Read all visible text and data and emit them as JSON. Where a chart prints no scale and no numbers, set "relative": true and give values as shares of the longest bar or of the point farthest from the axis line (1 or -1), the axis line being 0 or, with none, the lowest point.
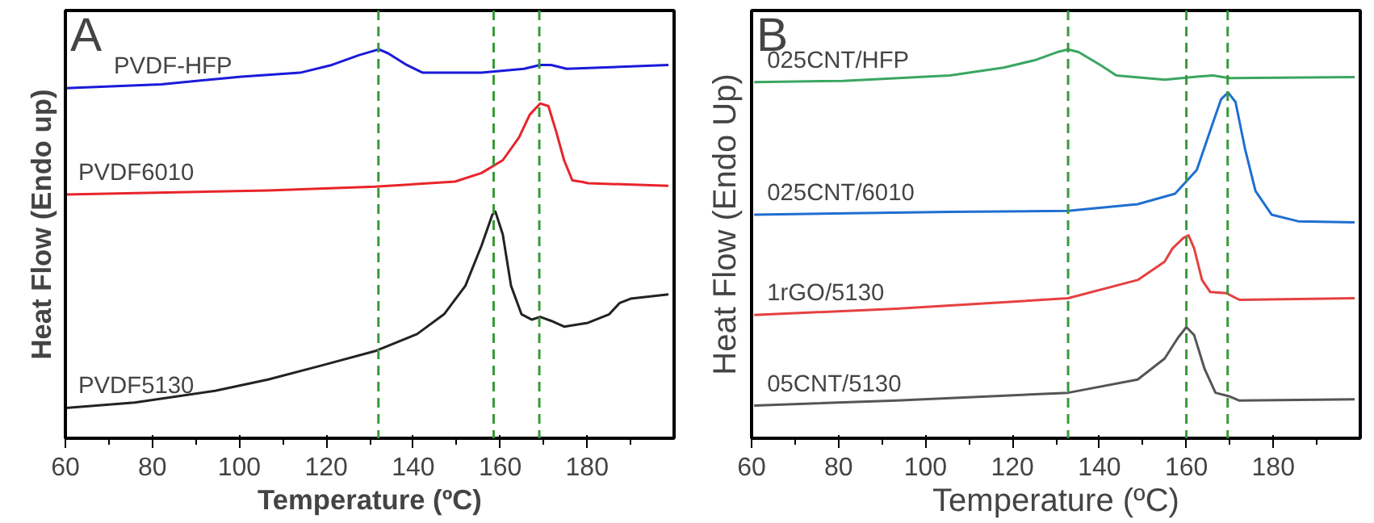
{
  "chart_data": [
    {
      "type": "line",
      "title": "A",
      "xlabel": "Temperature (ºC)",
      "ylabel": "Heat Flow (Endo up)",
      "relative": true,
      "xlim": [
        60,
        200
      ],
      "xticks": [
        60,
        80,
        100,
        120,
        140,
        160,
        180
      ],
      "grid": false,
      "line_style": "solid",
      "marker": "none",
      "series": [
        {
          "name": "PVDF-HFP",
          "color": "#1a1adb",
          "x": [
            60,
            82.1,
            100.5,
            114,
            121.3,
            127.5,
            132.1,
            134.2,
            138.5,
            142.2,
            155.7,
            165.5,
            169.2,
            171.7,
            175.3,
            198.7
          ],
          "values": [
            0.9,
            0.91,
            0.93,
            0.94,
            0.96,
            0.985,
            1.0,
            0.99,
            0.96,
            0.94,
            0.94,
            0.95,
            0.96,
            0.96,
            0.95,
            0.96
          ]
        },
        {
          "name": "PVDF6010",
          "color": "#e8242a",
          "x": [
            60,
            106.6,
            131.2,
            149.6,
            155.7,
            160.6,
            164.3,
            166.8,
            169.2,
            171.1,
            172.9,
            174.7,
            176.6,
            179,
            180.2,
            198.7
          ],
          "values": [
            0.627,
            0.637,
            0.647,
            0.66,
            0.682,
            0.715,
            0.773,
            0.832,
            0.861,
            0.854,
            0.788,
            0.715,
            0.663,
            0.659,
            0.656,
            0.649
          ]
        },
        {
          "name": "PVDF5130",
          "color": "#222222",
          "x": [
            60,
            75.95,
            94.4,
            106.6,
            118.9,
            131.2,
            140.9,
            147.1,
            152,
            155.7,
            158.2,
            158.9,
            160.6,
            162.5,
            164.9,
            167.3,
            169.2,
            171.7,
            174.7,
            180.2,
            185.1,
            187.5,
            190,
            198.7
          ],
          "values": [
            0.078,
            0.092,
            0.122,
            0.151,
            0.187,
            0.224,
            0.268,
            0.319,
            0.392,
            0.495,
            0.575,
            0.583,
            0.524,
            0.392,
            0.319,
            0.305,
            0.312,
            0.302,
            0.287,
            0.297,
            0.319,
            0.348,
            0.359,
            0.37
          ]
        }
      ],
      "ref_lines": [
        {
          "axis": "x",
          "value": 132,
          "color": "#3a9a3a",
          "line_style": "dashed"
        },
        {
          "axis": "x",
          "value": 158.5,
          "color": "#3a9a3a",
          "line_style": "dashed"
        },
        {
          "axis": "x",
          "value": 169,
          "color": "#3a9a3a",
          "line_style": "dashed"
        }
      ]
    },
    {
      "type": "line",
      "title": "B",
      "xlabel": "Temperature (ºC)",
      "ylabel": "Heat Flow (Endo Up)",
      "relative": true,
      "xlim": [
        60,
        200
      ],
      "xticks": [
        60,
        80,
        100,
        120,
        140,
        160,
        180
      ],
      "grid": false,
      "line_style": "solid",
      "marker": "none",
      "series": [
        {
          "name": "025CNT/HFP",
          "color": "#3aa661",
          "x": [
            60.6,
            81,
            105.6,
            118,
            125.4,
            130.3,
            132.8,
            135.2,
            140.2,
            143.9,
            155,
            162.4,
            166.1,
            169.8,
            198.7
          ],
          "values": [
            0.916,
            0.919,
            0.933,
            0.953,
            0.973,
            0.993,
            1.0,
            0.993,
            0.96,
            0.933,
            0.922,
            0.93,
            0.933,
            0.926,
            0.929
          ]
        },
        {
          "name": "025CNT/6010",
          "color": "#1f6fd0",
          "x": [
            60.6,
            105.6,
            132.8,
            148.8,
            157.4,
            162.4,
            166.1,
            168,
            169.6,
            171.3,
            173.5,
            175.9,
            179.6,
            185.7,
            198.7
          ],
          "values": [
            0.575,
            0.582,
            0.585,
            0.602,
            0.629,
            0.69,
            0.811,
            0.872,
            0.889,
            0.865,
            0.744,
            0.636,
            0.575,
            0.558,
            0.555
          ]
        },
        {
          "name": "1rGO/5130",
          "color": "#e64040",
          "x": [
            60.6,
            93.3,
            132.8,
            148.8,
            155,
            156.8,
            159.3,
            160.5,
            161.8,
            163.6,
            165.5,
            169.2,
            172.2,
            198.7
          ],
          "values": [
            0.317,
            0.333,
            0.36,
            0.407,
            0.454,
            0.488,
            0.515,
            0.522,
            0.488,
            0.407,
            0.376,
            0.373,
            0.356,
            0.36
          ]
        },
        {
          "name": "05CNT/5130",
          "color": "#555555",
          "x": [
            60.6,
            93.3,
            132.8,
            148.8,
            155,
            158.1,
            160,
            161.8,
            164.2,
            166.7,
            169.8,
            172.2,
            198.7
          ],
          "values": [
            0.084,
            0.097,
            0.117,
            0.151,
            0.205,
            0.259,
            0.286,
            0.265,
            0.178,
            0.117,
            0.108,
            0.097,
            0.1
          ]
        }
      ],
      "ref_lines": [
        {
          "axis": "x",
          "value": 132.8,
          "color": "#3a9a3a",
          "line_style": "dashed"
        },
        {
          "axis": "x",
          "value": 160,
          "color": "#3a9a3a",
          "line_style": "dashed"
        },
        {
          "axis": "x",
          "value": 169.5,
          "color": "#3a9a3a",
          "line_style": "dashed"
        }
      ]
    }
  ]
}
